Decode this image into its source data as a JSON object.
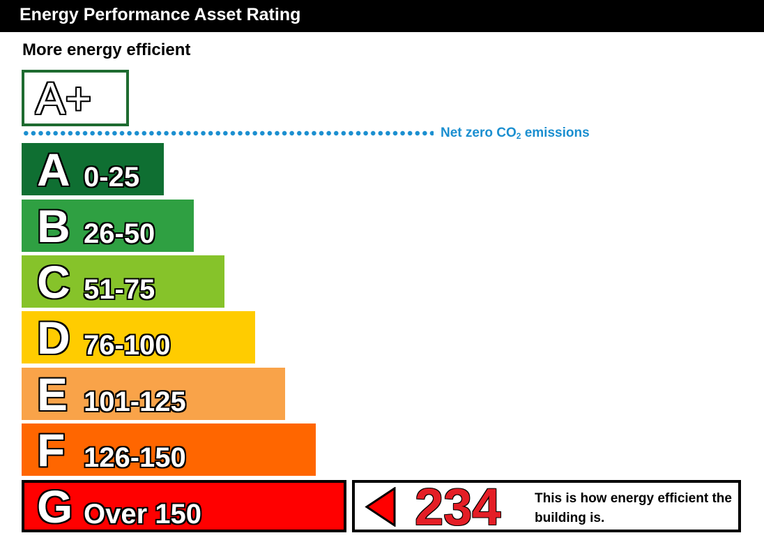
{
  "header": {
    "title": "Energy Performance Asset Rating"
  },
  "more_label": "More energy efficient",
  "top_band": {
    "label": "A+",
    "border_color": "#1e6b30"
  },
  "net_zero": {
    "label": "Net zero CO",
    "subscript": "2",
    "suffix": " emissions",
    "color": "#1b8fd0"
  },
  "chart_data": {
    "type": "bar",
    "categories": [
      "A",
      "B",
      "C",
      "D",
      "E",
      "F",
      "G"
    ],
    "ranges": [
      "0-25",
      "26-50",
      "51-75",
      "76-100",
      "101-125",
      "126-150",
      "Over 150"
    ],
    "colors": [
      "#0f6f32",
      "#2fa042",
      "#86c32a",
      "#ffcc00",
      "#f9a349",
      "#ff6600",
      "#ff0000"
    ],
    "current_rating": {
      "band": "G",
      "value": 234
    }
  },
  "rating_note": "This is how energy efficient the building is."
}
